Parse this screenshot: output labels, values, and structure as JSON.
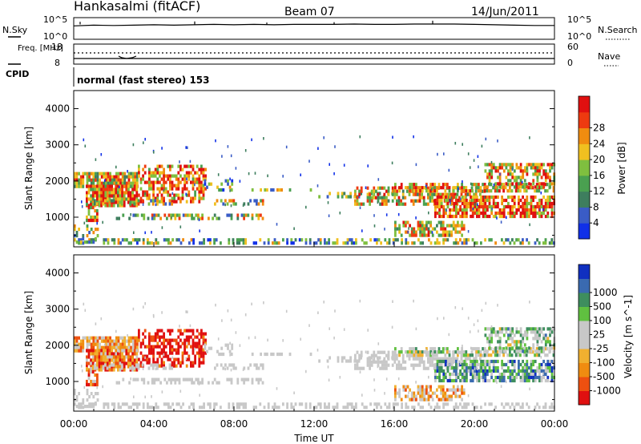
{
  "header": {
    "station": "Hankasalmi (fitACF)",
    "beam": "Beam 07",
    "date": "14/Jun/2011"
  },
  "colors": {
    "power_scale": [
      "#1030e8",
      "#3a5cc6",
      "#3e7e5e",
      "#4aa050",
      "#7fbf3f",
      "#f0c020",
      "#f08c10",
      "#ee3a10",
      "#e01010"
    ],
    "velocity_scale": [
      "#e01010",
      "#ee5010",
      "#f08c10",
      "#f0b030",
      "#c8c8c8",
      "#c8c8c8",
      "#60c040",
      "#3e8e5e",
      "#3a6ab0",
      "#1030c0"
    ]
  },
  "chart_data": [
    {
      "type": "line",
      "panel": "noise",
      "left_axis_label": "N.Sky",
      "right_axis_label": "N.Search",
      "left_ticks": [
        "10^5",
        "10^0"
      ],
      "right_ticks": [
        "10^5",
        "10^0"
      ],
      "xlim": [
        "00:00",
        "24:00"
      ],
      "series": [
        {
          "values_log10": [
            3.2,
            3.4,
            3.3,
            3.4,
            3.5,
            3.4,
            3.5,
            3.6,
            3.5,
            3.6,
            3.5,
            3.6,
            3.6,
            3.6,
            3.7,
            3.6,
            3.6,
            3.7,
            3.7,
            3.7,
            3.6,
            3.5,
            3.4,
            3.3,
            3.3
          ]
        }
      ]
    },
    {
      "type": "line",
      "panel": "frequency",
      "left_axis_label": "Freq. [MHz]",
      "right_axis_label": "Nave",
      "left_ticks": [
        "18",
        "8"
      ],
      "right_ticks": [
        "60",
        "0"
      ],
      "cpid_label": "CPID",
      "cpid_text": "normal (fast stereo) 153"
    },
    {
      "type": "heatmap",
      "panel": "power",
      "ylabel": "Slant Range [km]",
      "y_ticks": [
        "1000",
        "2000",
        "3000",
        "4000"
      ],
      "ylim": [
        180,
        4500
      ],
      "colorbar_label": "Power [dB]",
      "colorbar_ticks": [
        "4",
        "8",
        "12",
        "16",
        "20",
        "24",
        "28"
      ],
      "zlim": [
        0,
        30
      ]
    },
    {
      "type": "heatmap",
      "panel": "velocity",
      "ylabel": "Slant Range [km]",
      "y_ticks": [
        "1000",
        "2000",
        "3000",
        "4000"
      ],
      "ylim": [
        180,
        4500
      ],
      "colorbar_label": "Velocity [m s^-1]",
      "colorbar_ticks": [
        "-1000",
        "-500",
        "-100",
        "-25",
        "25",
        "100",
        "500",
        "1000"
      ],
      "xlabel": "Time UT",
      "x_ticks": [
        "00:00",
        "04:00",
        "08:00",
        "12:00",
        "16:00",
        "20:00",
        "00:00"
      ]
    }
  ]
}
